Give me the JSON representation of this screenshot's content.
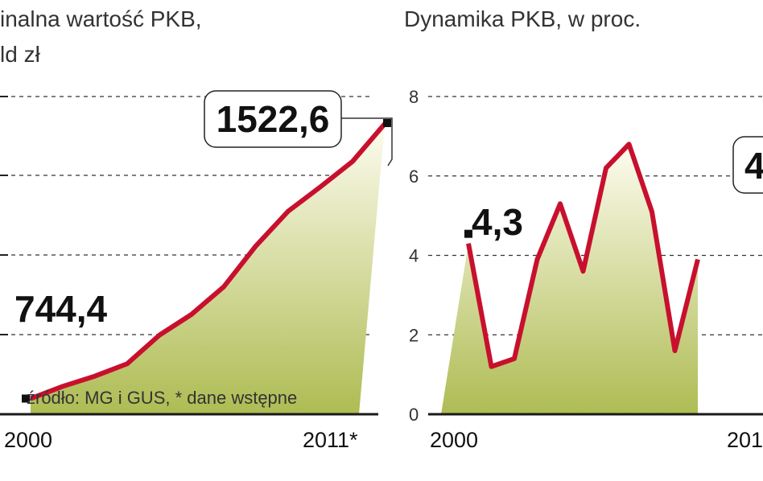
{
  "chart_data": [
    {
      "type": "area",
      "title_lines": [
        "inalna wartość PKB,",
        "ld zł"
      ],
      "x_labels": [
        "2000",
        "2011*"
      ],
      "x": [
        2000,
        2001,
        2002,
        2003,
        2004,
        2005,
        2006,
        2007,
        2008,
        2009,
        2010,
        2011
      ],
      "values": [
        744.4,
        779,
        808,
        843,
        924,
        983,
        1061,
        1177,
        1275,
        1344,
        1416,
        1522.6
      ],
      "ylim": [
        700,
        1600
      ],
      "grid": true,
      "annotations": [
        {
          "label": "744,4",
          "index": 0,
          "boxed": false
        },
        {
          "label": "1522,6",
          "index": 11,
          "boxed": true
        }
      ],
      "source_note": "źródło: MG i GUS, * dane wstępne",
      "colors": {
        "line": "#c8102e",
        "fill_top": "#fdfcef",
        "fill_bottom": "#aebc53"
      }
    },
    {
      "type": "area",
      "title_lines": [
        "Dynamika PKB, w proc."
      ],
      "x_labels": [
        "2000",
        "201"
      ],
      "x": [
        2000,
        2001,
        2002,
        2003,
        2004,
        2005,
        2006,
        2007,
        2008,
        2009,
        2010
      ],
      "values": [
        4.3,
        1.2,
        1.4,
        3.9,
        5.3,
        3.6,
        6.2,
        6.8,
        5.1,
        1.6,
        3.9
      ],
      "y_ticks": [
        "0",
        "2",
        "4",
        "6",
        "8"
      ],
      "ylim": [
        0,
        8
      ],
      "grid": true,
      "annotations": [
        {
          "label": "4,3",
          "index": 0,
          "boxed": false
        },
        {
          "label": "4",
          "index": 10,
          "boxed": true
        }
      ],
      "colors": {
        "line": "#c8102e",
        "fill_top": "#fdfcef",
        "fill_bottom": "#aebc53"
      }
    }
  ]
}
